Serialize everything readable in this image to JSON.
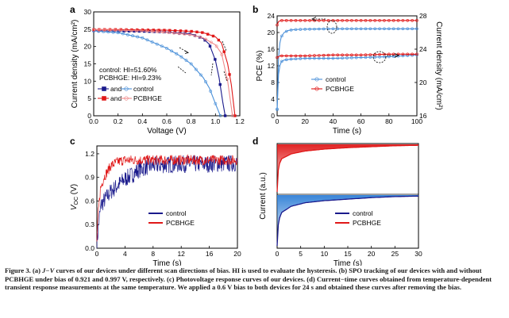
{
  "caption": {
    "label": "Figure 3.",
    "text_a1": "(a) ",
    "jv": "J−V",
    "text_a2": " curves of our devices under different scan directions of bias. HI is used to evaluate the hysteresis. (b) SPO tracking of our devices with and without PCBHGE under bias of 0.921 and 0.997 V, respectively. (c) Photovoltage response curves of our devices. (d) Current−time curves obtained from temperature-dependent transient response measurements at the same temperature. We applied a 0.6 V bias to both devices for 24 s and obtained these curves after removing the bias."
  },
  "colors": {
    "control": "#1a1a8c",
    "control_light": "#4a90d9",
    "pcbhge": "#e01818",
    "pcbhge_light": "#f08a8a"
  },
  "chart_data": [
    {
      "panel": "a",
      "type": "line",
      "xlabel": "Voltage (V)",
      "ylabel": "Current density (mA/cm²)",
      "xlim": [
        0.0,
        1.2
      ],
      "ylim": [
        0,
        30
      ],
      "xticks": [
        "0.0",
        "0.2",
        "0.4",
        "0.6",
        "0.8",
        "1.0",
        "1.2"
      ],
      "yticks": [
        "0",
        "5",
        "10",
        "15",
        "20",
        "25",
        "30"
      ],
      "annotations": [
        "control: HI=51.60%",
        "PCBHGE: HI=9.23%"
      ],
      "legend": [
        {
          "series": "control reverse",
          "text": "and"
        },
        {
          "series": "control forward",
          "text": "control"
        },
        {
          "series": "PCBHGE reverse",
          "text": "and"
        },
        {
          "series": "PCBHGE forward",
          "text": "PCBHGE"
        }
      ],
      "series": [
        {
          "name": "control reverse",
          "x": [
            0,
            0.2,
            0.4,
            0.6,
            0.8,
            0.9,
            0.95,
            1.0,
            1.03,
            1.06,
            1.08
          ],
          "y": [
            24.6,
            24.5,
            24.4,
            24.2,
            23.6,
            22.3,
            20.6,
            16.0,
            11.0,
            4.0,
            0
          ]
        },
        {
          "name": "control forward",
          "x": [
            0,
            0.2,
            0.4,
            0.6,
            0.7,
            0.8,
            0.9,
            0.95,
            1.0,
            1.04
          ],
          "y": [
            24.5,
            24.0,
            22.5,
            19.5,
            17.5,
            15.0,
            11.0,
            8.0,
            3.5,
            0
          ]
        },
        {
          "name": "PCBHGE reverse",
          "x": [
            0,
            0.2,
            0.4,
            0.6,
            0.8,
            0.9,
            1.0,
            1.05,
            1.1,
            1.13,
            1.16
          ],
          "y": [
            24.9,
            24.9,
            24.8,
            24.7,
            24.4,
            24.0,
            22.8,
            21.0,
            15.0,
            9.0,
            0
          ]
        },
        {
          "name": "PCBHGE forward",
          "x": [
            0,
            0.2,
            0.4,
            0.6,
            0.8,
            0.9,
            1.0,
            1.05,
            1.1,
            1.14
          ],
          "y": [
            24.8,
            24.7,
            24.5,
            24.1,
            23.4,
            22.5,
            20.5,
            18.0,
            10.0,
            0
          ]
        }
      ]
    },
    {
      "panel": "b",
      "type": "line",
      "xlabel": "Time (s)",
      "ylabel": "PCE (%)",
      "ylabel_right": "Current density (mA/cm²)",
      "xlim": [
        0,
        100
      ],
      "ylim": [
        0,
        24
      ],
      "ylim_right": [
        16,
        28
      ],
      "xticks": [
        "0",
        "20",
        "40",
        "60",
        "80",
        "100"
      ],
      "yticks": [
        "0",
        "4",
        "8",
        "12",
        "16",
        "20",
        "24"
      ],
      "yticks_right": [
        "16",
        "20",
        "24",
        "28"
      ],
      "legend": [
        "control",
        "PCBHGE"
      ],
      "series": [
        {
          "name": "control",
          "axis": "left",
          "x": [
            0,
            1,
            2,
            3,
            5,
            8,
            12,
            20,
            40,
            60,
            80,
            100
          ],
          "y": [
            1.5,
            14,
            17.5,
            19,
            20,
            20.5,
            20.7,
            20.8,
            20.9,
            20.9,
            20.9,
            20.9
          ]
        },
        {
          "name": "PCBHGE",
          "axis": "left",
          "x": [
            0,
            1,
            2,
            3,
            5,
            10,
            20,
            40,
            60,
            80,
            100
          ],
          "y": [
            21.8,
            22.6,
            22.8,
            22.9,
            22.9,
            22.9,
            22.9,
            22.9,
            22.9,
            22.9,
            22.9
          ]
        },
        {
          "name": "control",
          "axis": "right",
          "x": [
            0,
            1,
            2,
            3,
            5,
            10,
            20,
            40,
            60,
            80,
            100
          ],
          "y": [
            16.8,
            21.0,
            22.0,
            22.5,
            22.7,
            22.8,
            22.9,
            22.9,
            23.0,
            23.1,
            23.3
          ]
        },
        {
          "name": "PCBHGE",
          "axis": "right",
          "x": [
            0,
            1,
            2,
            3,
            5,
            10,
            20,
            40,
            60,
            80,
            100
          ],
          "y": [
            23.0,
            23.1,
            23.2,
            23.2,
            23.2,
            23.2,
            23.2,
            23.3,
            23.3,
            23.4,
            23.4
          ]
        }
      ]
    },
    {
      "panel": "c",
      "type": "line",
      "xlabel": "Time (s)",
      "ylabel": "V_OC (V)",
      "xlim": [
        0,
        20
      ],
      "ylim": [
        0.0,
        1.3
      ],
      "xticks": [
        "0",
        "4",
        "8",
        "12",
        "16",
        "20"
      ],
      "yticks": [
        "0.0",
        "0.3",
        "0.6",
        "0.9",
        "1.2"
      ],
      "legend": [
        "control",
        "PCBHGE"
      ],
      "series": [
        {
          "name": "control",
          "x": [
            0,
            0.3,
            0.6,
            1,
            2,
            3,
            4,
            5,
            6,
            7,
            8,
            10,
            12,
            16,
            20
          ],
          "y": [
            0.05,
            0.35,
            0.55,
            0.6,
            0.72,
            0.8,
            0.88,
            0.93,
            1.0,
            1.03,
            1.05,
            1.06,
            1.07,
            1.07,
            1.08
          ]
        },
        {
          "name": "PCBHGE",
          "x": [
            0,
            0.2,
            0.5,
            1,
            2,
            3,
            4,
            6,
            8,
            12,
            16,
            20
          ],
          "y": [
            0.1,
            0.45,
            0.75,
            0.9,
            1.05,
            1.1,
            1.12,
            1.12,
            1.12,
            1.12,
            1.12,
            1.12
          ]
        }
      ]
    },
    {
      "panel": "d",
      "type": "line",
      "xlabel": "Time (s)",
      "ylabel": "Current (a.u.)",
      "xlim": [
        0,
        30
      ],
      "xticks": [
        "0",
        "5",
        "10",
        "15",
        "20",
        "25",
        "30"
      ],
      "legend": [
        "control",
        "PCBHGE"
      ],
      "series": [
        {
          "name": "PCBHGE",
          "x": [
            0,
            0.3,
            1,
            3,
            6,
            10,
            15,
            20,
            25,
            30
          ],
          "y": [
            0.0,
            0.55,
            0.7,
            0.8,
            0.86,
            0.9,
            0.93,
            0.95,
            0.97,
            0.98
          ]
        },
        {
          "name": "control",
          "x": [
            0,
            0.3,
            1,
            3,
            6,
            10,
            15,
            20,
            25,
            30
          ],
          "y": [
            0.0,
            0.5,
            0.66,
            0.78,
            0.85,
            0.89,
            0.92,
            0.95,
            0.97,
            0.98
          ]
        }
      ]
    }
  ]
}
